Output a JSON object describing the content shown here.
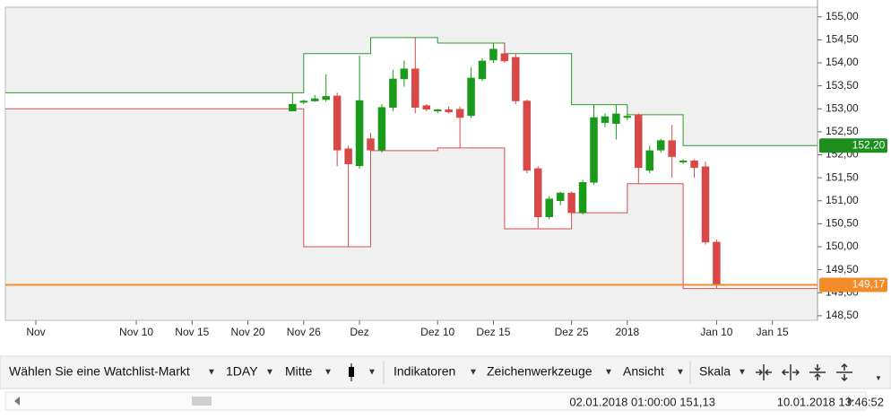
{
  "chart_data": {
    "type": "candlestick",
    "categories": [
      "Nov",
      null,
      null,
      null,
      null,
      null,
      null,
      null,
      null,
      "Nov 10",
      null,
      null,
      null,
      null,
      "Nov 15",
      null,
      null,
      null,
      null,
      "Nov 20",
      null,
      null,
      null,
      null,
      "Nov 26",
      null,
      null,
      null,
      null,
      "Dez",
      null,
      null,
      null,
      null,
      null,
      null,
      "Dez 10",
      null,
      null,
      null,
      null,
      "Dez 15",
      null,
      null,
      null,
      null,
      null,
      null,
      "Dez 25",
      null,
      null,
      null,
      null,
      "2018",
      null,
      null,
      null,
      null,
      null,
      null,
      null,
      "Jan 10",
      null,
      null,
      null,
      null,
      "Jan 15",
      null,
      null,
      null
    ],
    "open": [
      null,
      null,
      null,
      null,
      null,
      null,
      null,
      null,
      null,
      null,
      null,
      null,
      null,
      null,
      null,
      null,
      null,
      null,
      null,
      null,
      null,
      null,
      null,
      152.95,
      153.15,
      153.17,
      153.2,
      153.28,
      152.13,
      151.76,
      152.35,
      152.1,
      153.03,
      153.65,
      153.87,
      153.07,
      152.95,
      152.98,
      152.99,
      152.85,
      153.65,
      154.06,
      154.2,
      154.12,
      153.17,
      151.7,
      150.65,
      151.0,
      151.17,
      150.74,
      151.4,
      152.7,
      152.68,
      152.81,
      152.87,
      151.66,
      152.1,
      152.31,
      151.85,
      151.87,
      151.74,
      150.1,
      null,
      null,
      null,
      null,
      null,
      null,
      null,
      null
    ],
    "high": [
      null,
      null,
      null,
      null,
      null,
      null,
      null,
      null,
      null,
      null,
      null,
      null,
      null,
      null,
      null,
      null,
      null,
      null,
      null,
      null,
      null,
      null,
      null,
      153.35,
      153.2,
      153.3,
      153.75,
      153.35,
      152.2,
      154.16,
      152.48,
      153.1,
      153.85,
      154.05,
      154.55,
      153.1,
      153.0,
      153.05,
      153.05,
      153.9,
      154.1,
      154.43,
      154.43,
      154.2,
      153.2,
      151.75,
      151.1,
      151.2,
      151.2,
      151.45,
      153.09,
      152.9,
      153.09,
      152.9,
      152.9,
      152.2,
      152.35,
      152.65,
      151.9,
      151.9,
      151.85,
      150.15,
      null,
      null,
      null,
      null,
      null,
      null,
      null,
      null
    ],
    "low": [
      null,
      null,
      null,
      null,
      null,
      null,
      null,
      null,
      null,
      null,
      null,
      null,
      null,
      null,
      null,
      null,
      null,
      null,
      null,
      null,
      null,
      null,
      null,
      152.95,
      153.1,
      153.15,
      153.15,
      151.75,
      150.0,
      151.7,
      152.05,
      152.05,
      152.95,
      153.48,
      152.9,
      152.95,
      152.9,
      152.9,
      152.15,
      152.8,
      153.6,
      154.0,
      154.0,
      153.1,
      151.6,
      150.4,
      150.6,
      150.9,
      150.7,
      150.7,
      151.35,
      152.6,
      152.33,
      152.75,
      151.37,
      151.6,
      152.05,
      151.5,
      151.8,
      151.5,
      150.05,
      149.1,
      null,
      null,
      null,
      null,
      null,
      null,
      null,
      null
    ],
    "close": [
      null,
      null,
      null,
      null,
      null,
      null,
      null,
      null,
      null,
      null,
      null,
      null,
      null,
      null,
      null,
      null,
      null,
      null,
      null,
      null,
      null,
      null,
      null,
      153.1,
      153.17,
      153.22,
      153.27,
      152.1,
      151.8,
      153.18,
      152.1,
      153.03,
      153.65,
      153.87,
      153.03,
      152.99,
      152.98,
      152.93,
      152.81,
      153.67,
      154.04,
      154.3,
      154.04,
      153.17,
      151.66,
      150.65,
      151.04,
      151.17,
      150.74,
      151.4,
      152.81,
      152.83,
      152.89,
      152.84,
      151.72,
      152.09,
      152.31,
      151.96,
      151.87,
      151.72,
      150.1,
      149.17,
      null,
      null,
      null,
      null,
      null,
      null,
      null,
      null
    ],
    "up_color": "#1a9a1a",
    "down_color": "#d94848",
    "channel_upper": {
      "color": "#2c9a2c",
      "values": [
        153.35,
        153.35,
        153.35,
        153.35,
        153.35,
        153.35,
        153.35,
        153.35,
        153.35,
        153.35,
        153.35,
        153.35,
        153.35,
        153.35,
        153.35,
        153.35,
        153.35,
        153.35,
        153.35,
        153.35,
        153.35,
        153.35,
        153.35,
        153.35,
        154.2,
        154.2,
        154.2,
        154.2,
        154.2,
        154.2,
        154.55,
        154.55,
        154.55,
        154.55,
        154.55,
        154.55,
        154.43,
        154.43,
        154.43,
        154.43,
        154.43,
        154.43,
        154.2,
        154.2,
        154.2,
        154.2,
        154.2,
        154.2,
        153.09,
        153.09,
        153.09,
        153.09,
        153.09,
        152.87,
        152.87,
        152.87,
        152.87,
        152.87,
        152.2,
        152.2,
        152.2,
        152.2,
        152.2,
        152.2,
        152.2,
        152.2,
        152.2,
        152.2,
        152.2,
        152.2
      ]
    },
    "channel_lower": {
      "color": "#d25050",
      "values": [
        153.0,
        153.0,
        153.0,
        153.0,
        153.0,
        153.0,
        153.0,
        153.0,
        153.0,
        153.0,
        153.0,
        153.0,
        153.0,
        153.0,
        153.0,
        153.0,
        153.0,
        153.0,
        153.0,
        153.0,
        153.0,
        153.0,
        153.0,
        153.0,
        150.0,
        150.0,
        150.0,
        150.0,
        150.0,
        150.0,
        152.09,
        152.09,
        152.09,
        152.09,
        152.09,
        152.09,
        152.15,
        152.15,
        152.15,
        152.15,
        152.15,
        152.15,
        150.39,
        150.39,
        150.39,
        150.39,
        150.39,
        150.39,
        150.74,
        150.74,
        150.74,
        150.74,
        150.74,
        151.37,
        151.37,
        151.37,
        151.37,
        151.37,
        149.09,
        149.09,
        149.09,
        149.09,
        149.09,
        149.09,
        149.09,
        149.09,
        149.09,
        149.09,
        149.09,
        149.09
      ]
    },
    "price_lines": [
      {
        "value": 152.2,
        "label": "152,20",
        "color": "#1e8f1e",
        "line": false
      },
      {
        "value": 149.17,
        "label": "149,17",
        "color": "#f28c28",
        "line": true
      }
    ],
    "ylim": [
      148.4,
      155.21
    ],
    "yticks": [
      {
        "value": 148.5,
        "label": "148,50"
      },
      {
        "value": 149,
        "label": "149,00"
      },
      {
        "value": 149.5,
        "label": "149,50"
      },
      {
        "value": 150,
        "label": "150,00"
      },
      {
        "value": 150.5,
        "label": "150,50"
      },
      {
        "value": 151,
        "label": "151,00"
      },
      {
        "value": 151.5,
        "label": "151,50"
      },
      {
        "value": 152,
        "label": "152,00"
      },
      {
        "value": 152.5,
        "label": "152,50"
      },
      {
        "value": 153,
        "label": "153,00"
      },
      {
        "value": 153.5,
        "label": "153,50"
      },
      {
        "value": 154,
        "label": "154,00"
      },
      {
        "value": 154.5,
        "label": "154,50"
      },
      {
        "value": 155,
        "label": "155,00"
      }
    ]
  },
  "toolbar": {
    "watchlist": "Wählen Sie eine Watchlist-Markt",
    "interval": "1DAY",
    "mode": "Mitte",
    "indicators": "Indikatoren",
    "drawing_tools": "Zeichenwerkzeuge",
    "view": "Ansicht",
    "scale": "Skala"
  },
  "status_bar": {
    "cursor": "02.01.2018 01:00:00 151,13",
    "time": "10.01.2018 13:46:52"
  }
}
